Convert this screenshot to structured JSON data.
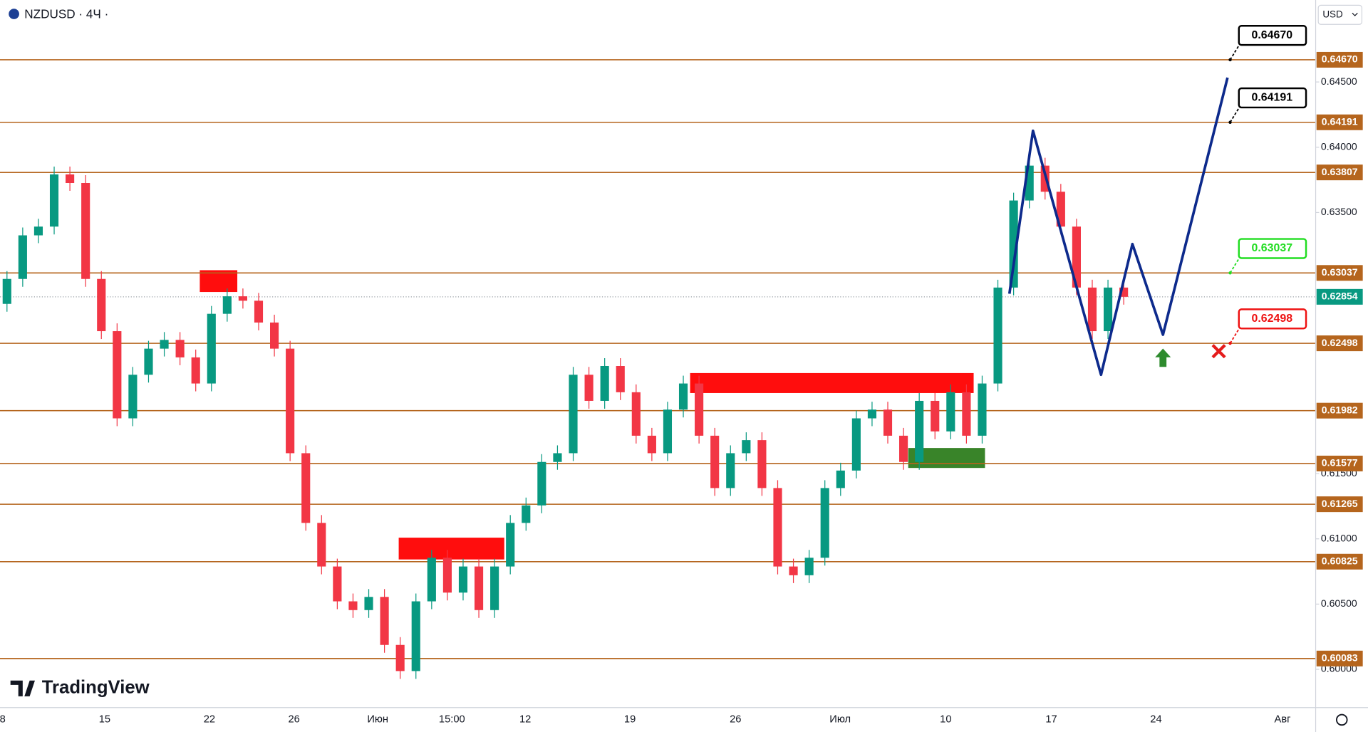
{
  "header": {
    "symbol": "NZDUSD · 4Ч ·",
    "currency": "USD",
    "logo": "TradingView"
  },
  "chart_data": {
    "type": "candlestick",
    "ylim": [
      0.59707,
      0.65128
    ],
    "yticks": [
      {
        "value": 0.645,
        "label": "0.64500"
      },
      {
        "value": 0.64,
        "label": "0.64000"
      },
      {
        "value": 0.635,
        "label": "0.63500"
      },
      {
        "value": 0.615,
        "label": "0.61500"
      },
      {
        "value": 0.61,
        "label": "0.61000"
      },
      {
        "value": 0.605,
        "label": "0.60500"
      },
      {
        "value": 0.6,
        "label": "0.60000"
      }
    ],
    "x_labels": [
      "8",
      "15",
      "22",
      "26",
      "Июн",
      "15:00",
      "12",
      "19",
      "26",
      "Июл",
      "10",
      "17",
      "24",
      "Авг"
    ],
    "up_color": "#089981",
    "down_color": "#f23645",
    "open": [
      0.628,
      0.62991,
      0.63325,
      0.63392,
      0.63792,
      0.63726,
      0.62991,
      0.62591,
      0.61923,
      0.62257,
      0.62457,
      0.62524,
      0.6239,
      0.6219,
      0.62724,
      0.62858,
      0.62824,
      0.62657,
      0.62457,
      0.61656,
      0.61122,
      0.60788,
      0.60521,
      0.60454,
      0.60555,
      0.60187,
      0.59987,
      0.60521,
      0.60855,
      0.60588,
      0.60788,
      0.60454,
      0.60788,
      0.61122,
      0.61256,
      0.61589,
      0.61656,
      0.62257,
      0.62057,
      0.62324,
      0.62123,
      0.6179,
      0.61656,
      0.6199,
      0.6219,
      0.6179,
      0.61389,
      0.61656,
      0.61756,
      0.61389,
      0.60788,
      0.60721,
      0.60855,
      0.61389,
      0.61523,
      0.61923,
      0.6199,
      0.6179,
      0.61589,
      0.62057,
      0.61823,
      0.62123,
      0.6179,
      0.6219,
      0.62925,
      0.63592,
      0.63859,
      0.63659,
      0.63392,
      0.62925,
      0.62591,
      0.62925
    ],
    "high": [
      0.63051,
      0.63385,
      0.63452,
      0.63852,
      0.63852,
      0.63786,
      0.63051,
      0.62651,
      0.62317,
      0.62517,
      0.62584,
      0.62584,
      0.6245,
      0.62784,
      0.62918,
      0.62918,
      0.62884,
      0.62717,
      0.62517,
      0.61716,
      0.61182,
      0.60848,
      0.60581,
      0.60615,
      0.60615,
      0.60247,
      0.60581,
      0.60915,
      0.60915,
      0.60848,
      0.60848,
      0.60848,
      0.61182,
      0.61316,
      0.61649,
      0.61716,
      0.62317,
      0.62317,
      0.62384,
      0.62384,
      0.62183,
      0.6185,
      0.6205,
      0.6225,
      0.6225,
      0.6185,
      0.61716,
      0.61816,
      0.61816,
      0.61449,
      0.60848,
      0.60915,
      0.61449,
      0.61583,
      0.61983,
      0.6205,
      0.6205,
      0.6185,
      0.62117,
      0.62117,
      0.62183,
      0.62183,
      0.6225,
      0.62985,
      0.63652,
      0.63919,
      0.63919,
      0.63719,
      0.63452,
      0.62985,
      0.62985,
      0.62985
    ],
    "low": [
      0.6274,
      0.62931,
      0.63265,
      0.63332,
      0.63666,
      0.62931,
      0.62531,
      0.61863,
      0.61863,
      0.62197,
      0.62397,
      0.6233,
      0.6213,
      0.6213,
      0.62664,
      0.62764,
      0.62597,
      0.62397,
      0.61596,
      0.61062,
      0.60728,
      0.60461,
      0.60394,
      0.60394,
      0.60127,
      0.59927,
      0.59927,
      0.60461,
      0.60528,
      0.60528,
      0.60394,
      0.60394,
      0.60728,
      0.61062,
      0.61196,
      0.61529,
      0.61596,
      0.61997,
      0.61997,
      0.62063,
      0.6173,
      0.61596,
      0.61596,
      0.6193,
      0.6173,
      0.61329,
      0.61329,
      0.61596,
      0.61329,
      0.60728,
      0.60661,
      0.60661,
      0.60795,
      0.61329,
      0.61463,
      0.61863,
      0.6173,
      0.61529,
      0.61529,
      0.61763,
      0.61763,
      0.6173,
      0.6173,
      0.6213,
      0.62865,
      0.63532,
      0.63599,
      0.63332,
      0.62865,
      0.62531,
      0.62531,
      0.62794
    ],
    "close": [
      0.62991,
      0.63325,
      0.63392,
      0.63792,
      0.63726,
      0.62991,
      0.62591,
      0.61923,
      0.62257,
      0.62457,
      0.62524,
      0.6239,
      0.6219,
      0.62724,
      0.62858,
      0.62824,
      0.62657,
      0.62457,
      0.61656,
      0.61122,
      0.60788,
      0.60521,
      0.60454,
      0.60555,
      0.60187,
      0.59987,
      0.60521,
      0.60855,
      0.60588,
      0.60788,
      0.60454,
      0.60788,
      0.61122,
      0.61256,
      0.61589,
      0.61656,
      0.62257,
      0.62057,
      0.62324,
      0.62123,
      0.6179,
      0.61656,
      0.6199,
      0.6219,
      0.6179,
      0.61389,
      0.61656,
      0.61756,
      0.61389,
      0.60788,
      0.60721,
      0.60855,
      0.61389,
      0.61523,
      0.61923,
      0.6199,
      0.6179,
      0.61589,
      0.62057,
      0.61823,
      0.62123,
      0.6179,
      0.6219,
      0.62925,
      0.63592,
      0.63859,
      0.63659,
      0.63392,
      0.62925,
      0.62591,
      0.62925,
      0.62854
    ],
    "current": {
      "value": 0.62854,
      "label": "0.62854",
      "color": "#089981"
    },
    "level_color": "#b5651d",
    "levels": [
      {
        "value": 0.6467,
        "label": "0.64670"
      },
      {
        "value": 0.64191,
        "label": "0.64191"
      },
      {
        "value": 0.63807,
        "label": "0.63807"
      },
      {
        "value": 0.63037,
        "label": "0.63037"
      },
      {
        "value": 0.62498,
        "label": "0.62498"
      },
      {
        "value": 0.61982,
        "label": "0.61982"
      },
      {
        "value": 0.61577,
        "label": "0.61577"
      },
      {
        "value": 0.61265,
        "label": "0.61265"
      },
      {
        "value": 0.60825,
        "label": "0.60825"
      },
      {
        "value": 0.60083,
        "label": "0.60083"
      }
    ],
    "zones": [
      {
        "top": 0.63058,
        "bottom": 0.62891,
        "color": "#ff0000"
      },
      {
        "top": 0.61009,
        "bottom": 0.60842,
        "color": "#ff0000"
      },
      {
        "top": 0.6227,
        "bottom": 0.62117,
        "color": "#ff0000"
      },
      {
        "top": 0.61696,
        "bottom": 0.61543,
        "color": "#2e7d1e"
      }
    ],
    "projection": {
      "color": "#0d2a8c",
      "values": [
        0.62878,
        0.64126,
        0.62257,
        0.63258,
        0.62564,
        0.64533
      ]
    },
    "callouts": [
      {
        "value": 0.6467,
        "label": "0.64670",
        "color": "#000000"
      },
      {
        "value": 0.64191,
        "label": "0.64191",
        "color": "#000000"
      },
      {
        "value": 0.63037,
        "label": "0.63037",
        "color": "#22dd22"
      },
      {
        "value": 0.62498,
        "label": "0.62498",
        "color": "#ee1111"
      }
    ]
  }
}
